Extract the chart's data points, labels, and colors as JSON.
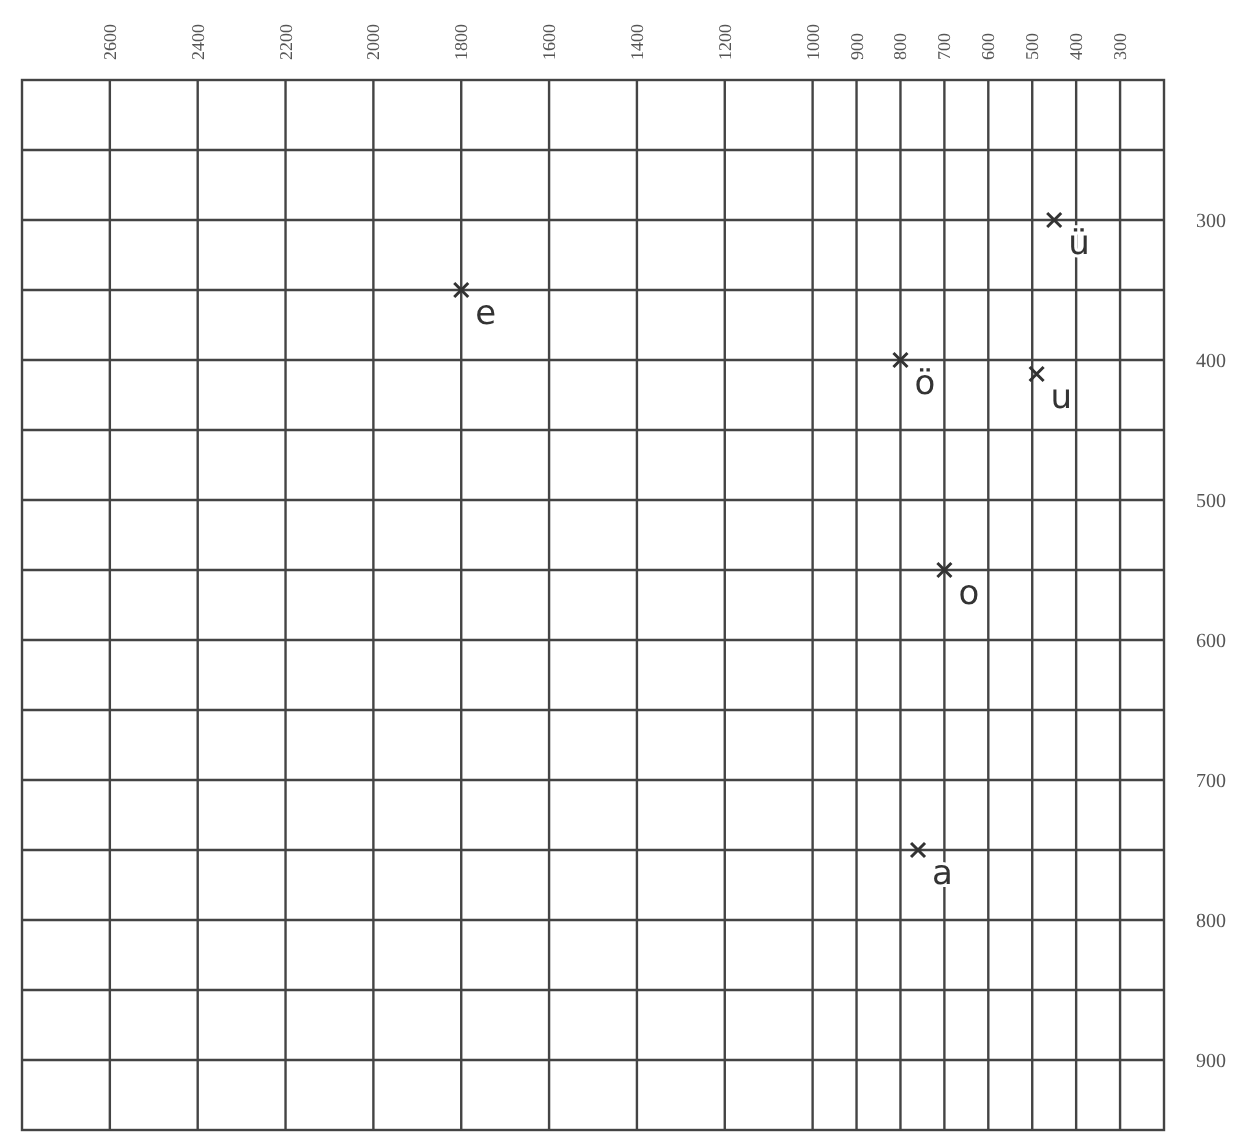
{
  "chart_data": {
    "type": "scatter",
    "marker": "cross",
    "grid": true,
    "xlim": [
      2800,
      200
    ],
    "xticks": [
      2600,
      2400,
      2200,
      2000,
      1800,
      1600,
      1400,
      1200,
      1000,
      900,
      800,
      700,
      600,
      500,
      400,
      300
    ],
    "ylim": [
      950,
      200
    ],
    "yticks": [
      {
        "value": 250,
        "label": null
      },
      300,
      {
        "value": 350,
        "label": null
      },
      400,
      {
        "value": 450,
        "label": null
      },
      500,
      {
        "value": 550,
        "label": null
      },
      600,
      {
        "value": 650,
        "label": null
      },
      700,
      {
        "value": 750,
        "label": null
      },
      800,
      {
        "value": 850,
        "label": null
      },
      900
    ],
    "series": [
      {
        "name": "ü",
        "color": "#333333",
        "x": [
          450
        ],
        "values": [
          300
        ]
      },
      {
        "name": "e",
        "color": "#333333",
        "x": [
          1800
        ],
        "values": [
          350
        ]
      },
      {
        "name": "ö",
        "color": "#333333",
        "x": [
          800
        ],
        "values": [
          400
        ]
      },
      {
        "name": "u",
        "color": "#333333",
        "x": [
          490
        ],
        "values": [
          410
        ]
      },
      {
        "name": "o",
        "color": "#333333",
        "x": [
          700
        ],
        "values": [
          550
        ]
      },
      {
        "name": "a",
        "color": "#333333",
        "x": [
          760
        ],
        "values": [
          750
        ]
      }
    ]
  }
}
